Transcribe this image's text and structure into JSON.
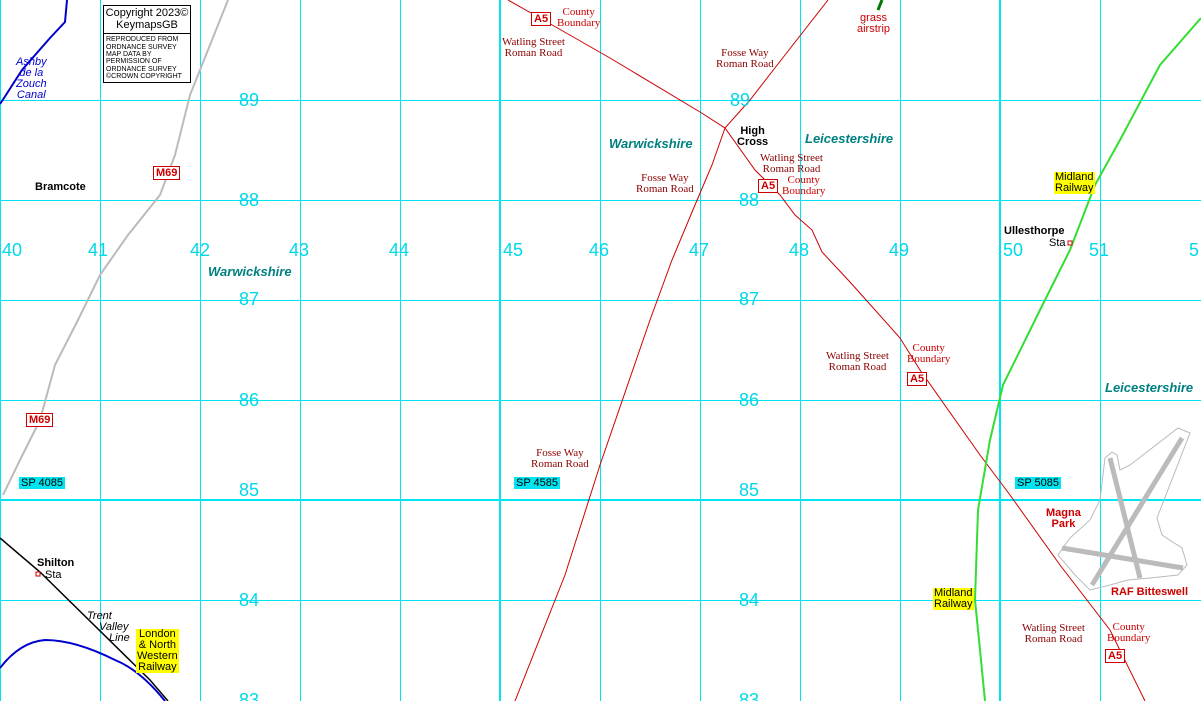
{
  "copyright": {
    "line1": "Copyright 2023©",
    "line2": "KeymapsGB",
    "notice": [
      "REPRODUCED FROM",
      "ORDNANCE SURVEY",
      "MAP DATA BY",
      "PERMISSION OF",
      "ORDNANCE SURVEY",
      "©CROWN COPYRIGHT"
    ]
  },
  "grid": {
    "eastings": [
      "40",
      "41",
      "42",
      "43",
      "44",
      "45",
      "46",
      "47",
      "48",
      "49",
      "50",
      "51",
      "5"
    ],
    "northings_left": [
      "89",
      "88",
      "87",
      "86",
      "85",
      "84",
      "83"
    ],
    "northings_right": [
      "89",
      "88",
      "87",
      "86",
      "85",
      "84",
      "83"
    ]
  },
  "grid_refs": [
    "SP 4085",
    "SP 4585",
    "SP 5085"
  ],
  "counties": {
    "warwickshire_west": "Warwickshire",
    "warwickshire_north": "Warwickshire",
    "leicestershire_north": "Leicestershire",
    "leicestershire_east": "Leicestershire"
  },
  "places": {
    "bramcote": "Bramcote",
    "high_cross": [
      "High",
      "Cross"
    ],
    "ullesthorpe": "Ullesthorpe",
    "ullesthorpe_sta": "Sta",
    "shilton": "Shilton",
    "shilton_sta": "Sta"
  },
  "roads": {
    "m69": "M69",
    "a5": "A5"
  },
  "roman_roads": {
    "watling_street": [
      "Watling Street",
      "Roman Road"
    ],
    "fosse_way": [
      "Fosse Way",
      "Roman Road"
    ]
  },
  "county_boundary": [
    "County",
    "Boundary"
  ],
  "railways": {
    "midland": [
      "Midland",
      "Railway"
    ],
    "lnwr": [
      "London",
      "& North",
      "Western",
      "Railway"
    ],
    "trent_valley": [
      "Trent",
      "Valley",
      "Line"
    ]
  },
  "canal": [
    "Ashby",
    "de la",
    "Zouch",
    "Canal"
  ],
  "airstrip": [
    "grass",
    "airstrip"
  ],
  "airfield": {
    "magna_park": [
      "Magna",
      "Park"
    ],
    "raf": "RAF Bitteswell"
  },
  "colors": {
    "grid": "#00e5f0",
    "roman_road": "#cc0000",
    "motorway": "#bbbbbb",
    "midland_railway": "#33dd33",
    "lnwr_railway": "#000000",
    "canal": "#0000cc",
    "airfield": "#bbbbbb",
    "county_label": "#008080"
  }
}
